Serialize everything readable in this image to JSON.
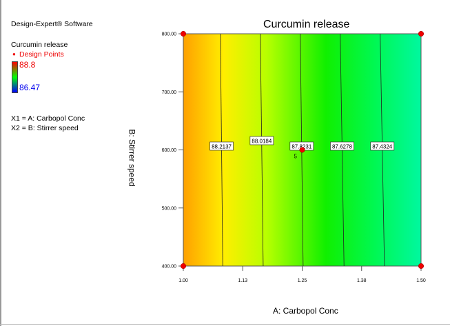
{
  "software": "Design-Expert® Software",
  "legend": {
    "response": "Curcumin release",
    "design_points": "Design Points",
    "high": "88.8",
    "low": "86.47",
    "x1": "X1 = A: Carbopol Conc",
    "x2": "X2 = B: Stirrer speed"
  },
  "chart_data": {
    "type": "contour",
    "title": "Curcumin release",
    "xlabel": "A: Carbopol Conc",
    "ylabel": "B: Stirrer speed",
    "xlim": [
      1.0,
      1.5
    ],
    "ylim": [
      400,
      800
    ],
    "xticks": [
      "1.00",
      "1.13",
      "1.25",
      "1.38",
      "1.50"
    ],
    "yticks": [
      "400.00",
      "500.00",
      "600.00",
      "700.00",
      "800.00"
    ],
    "contours": [
      {
        "label": "88.2137",
        "x_top": 1.078,
        "x_bottom": 1.083
      },
      {
        "label": "88.0184",
        "x_top": 1.162,
        "x_bottom": 1.168
      },
      {
        "label": "87.8231",
        "x_top": 1.246,
        "x_bottom": 1.252
      },
      {
        "label": "87.6278",
        "x_top": 1.33,
        "x_bottom": 1.338
      },
      {
        "label": "87.4324",
        "x_top": 1.414,
        "x_bottom": 1.423
      }
    ],
    "design_points": [
      {
        "x": 1.0,
        "y": 400
      },
      {
        "x": 1.0,
        "y": 800
      },
      {
        "x": 1.5,
        "y": 400
      },
      {
        "x": 1.5,
        "y": 800
      },
      {
        "x": 1.25,
        "y": 600,
        "count": "5"
      }
    ]
  }
}
